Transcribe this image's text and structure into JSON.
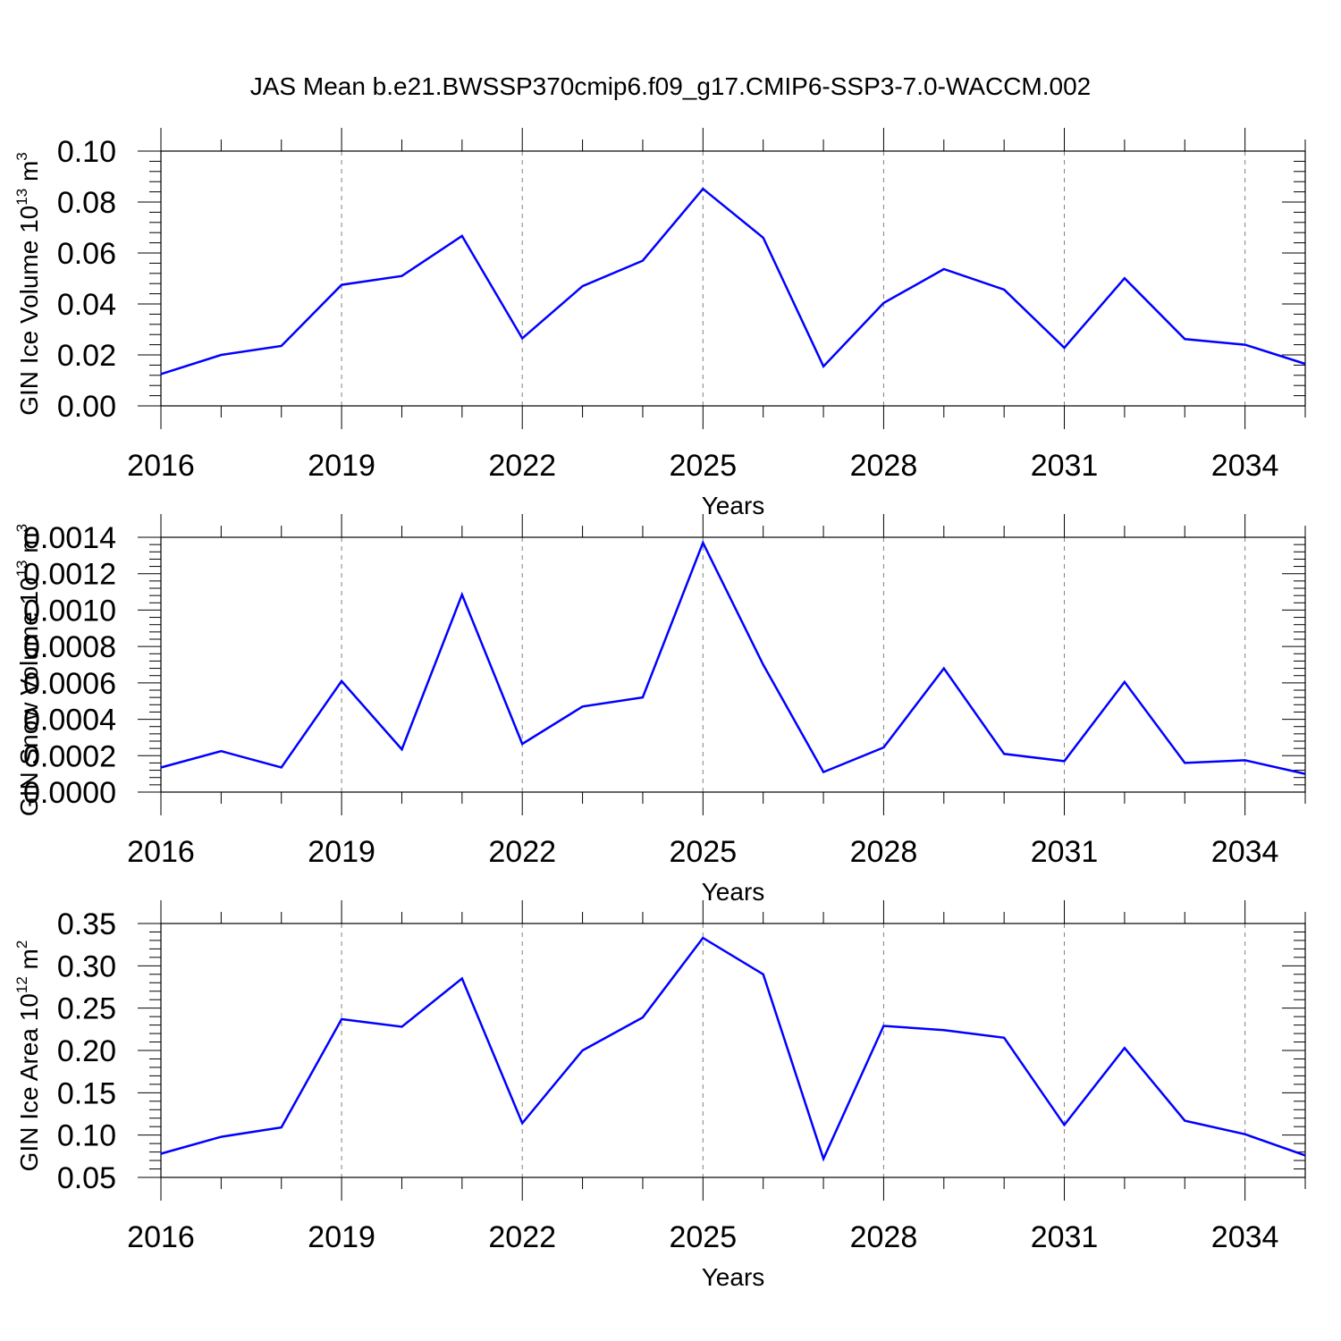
{
  "title": "JAS Mean b.e21.BWSSP370cmip6.f09_g17.CMIP6-SSP3-7.0-WACCM.002",
  "colors": {
    "line": "#0000ff",
    "axis": "#000000",
    "grid": "#808080"
  },
  "chart_data": [
    {
      "type": "line",
      "xlabel": "Years",
      "ylabel": {
        "text": "GIN Ice Volume 10",
        "exp": "13",
        "unit": " m",
        "unit_exp": "3"
      },
      "x": [
        2016,
        2017,
        2018,
        2019,
        2020,
        2021,
        2022,
        2023,
        2024,
        2025,
        2026,
        2027,
        2028,
        2029,
        2030,
        2031,
        2032,
        2033,
        2034,
        2035
      ],
      "values": [
        0.0125,
        0.02,
        0.0235,
        0.0475,
        0.051,
        0.0667,
        0.0265,
        0.047,
        0.057,
        0.0852,
        0.066,
        0.0155,
        0.0404,
        0.0537,
        0.0456,
        0.0228,
        0.0501,
        0.0262,
        0.024,
        0.0165
      ],
      "xlim": [
        2016,
        2035
      ],
      "ylim": [
        0,
        0.1
      ],
      "xticks": [
        "2016",
        "2019",
        "2022",
        "2025",
        "2028",
        "2031",
        "2034"
      ],
      "xtick_values": [
        2016,
        2019,
        2022,
        2025,
        2028,
        2031,
        2034
      ],
      "yticks": [
        "0.00",
        "0.02",
        "0.04",
        "0.06",
        "0.08",
        "0.10"
      ],
      "ytick_values": [
        0,
        0.02,
        0.04,
        0.06,
        0.08,
        0.1
      ],
      "grid": "dashed vertical at major x ticks"
    },
    {
      "type": "line",
      "xlabel": "Years",
      "ylabel": {
        "text": "GIN Snow Volume 10",
        "exp": "13",
        "unit": " m",
        "unit_exp": "3"
      },
      "x": [
        2016,
        2017,
        2018,
        2019,
        2020,
        2021,
        2022,
        2023,
        2024,
        2025,
        2026,
        2027,
        2028,
        2029,
        2030,
        2031,
        2032,
        2033,
        2034,
        2035
      ],
      "values": [
        0.000135,
        0.000225,
        0.000135,
        0.00061,
        0.000235,
        0.001085,
        0.000265,
        0.00047,
        0.00052,
        0.00137,
        0.0007,
        0.00011,
        0.000245,
        0.00068,
        0.00021,
        0.00017,
        0.000605,
        0.00016,
        0.000175,
        0.0001
      ],
      "xlim": [
        2016,
        2035
      ],
      "ylim": [
        0,
        0.0014
      ],
      "xticks": [
        "2016",
        "2019",
        "2022",
        "2025",
        "2028",
        "2031",
        "2034"
      ],
      "xtick_values": [
        2016,
        2019,
        2022,
        2025,
        2028,
        2031,
        2034
      ],
      "yticks": [
        "0.0000",
        "0.0002",
        "0.0004",
        "0.0006",
        "0.0008",
        "0.0010",
        "0.0012",
        "0.0014"
      ],
      "ytick_values": [
        0,
        0.0002,
        0.0004,
        0.0006,
        0.0008,
        0.001,
        0.0012,
        0.0014
      ],
      "grid": "dashed vertical at major x ticks"
    },
    {
      "type": "line",
      "xlabel": "Years",
      "ylabel": {
        "text": "GIN Ice Area 10",
        "exp": "12",
        "unit": " m",
        "unit_exp": "2"
      },
      "x": [
        2016,
        2017,
        2018,
        2019,
        2020,
        2021,
        2022,
        2023,
        2024,
        2025,
        2026,
        2027,
        2028,
        2029,
        2030,
        2031,
        2032,
        2033,
        2034,
        2035
      ],
      "values": [
        0.078,
        0.098,
        0.109,
        0.237,
        0.228,
        0.285,
        0.114,
        0.2,
        0.239,
        0.333,
        0.29,
        0.072,
        0.229,
        0.224,
        0.215,
        0.112,
        0.203,
        0.117,
        0.101,
        0.076
      ],
      "xlim": [
        2016,
        2035
      ],
      "ylim": [
        0.05,
        0.35
      ],
      "xticks": [
        "2016",
        "2019",
        "2022",
        "2025",
        "2028",
        "2031",
        "2034"
      ],
      "xtick_values": [
        2016,
        2019,
        2022,
        2025,
        2028,
        2031,
        2034
      ],
      "yticks": [
        "0.05",
        "0.10",
        "0.15",
        "0.20",
        "0.25",
        "0.30",
        "0.35"
      ],
      "ytick_values": [
        0.05,
        0.1,
        0.15,
        0.2,
        0.25,
        0.3,
        0.35
      ],
      "grid": "dashed vertical at major x ticks"
    }
  ]
}
